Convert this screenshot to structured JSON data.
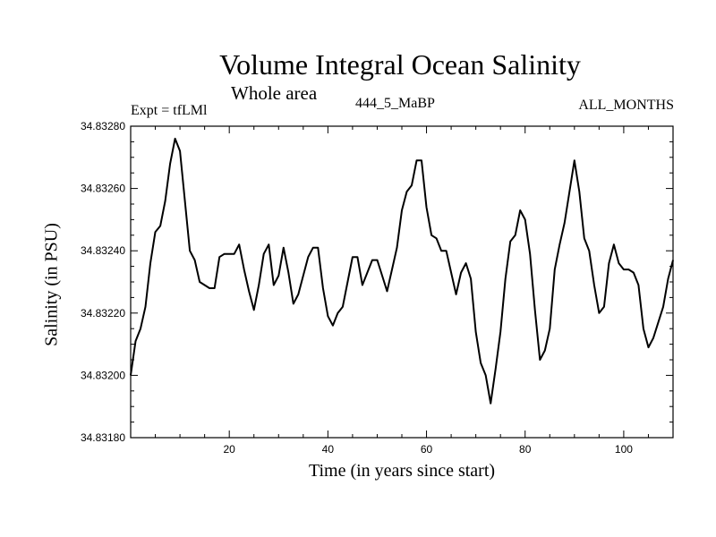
{
  "chart_data": {
    "type": "line",
    "title": "Volume Integral Ocean Salinity",
    "subtitle": "Whole area",
    "left_label": "Expt = tfLMl",
    "center_label": "444_5_MaBP",
    "right_label": "ALL_MONTHS",
    "xlabel": "Time (in years since start)",
    "ylabel": "Salinity (in PSU)",
    "xlim": [
      0,
      110
    ],
    "ylim": [
      34.8318,
      34.8328
    ],
    "x_ticks": [
      20,
      40,
      60,
      80,
      100
    ],
    "y_ticks": [
      "34.83180",
      "34.83200",
      "34.83220",
      "34.83240",
      "34.83260",
      "34.83280"
    ],
    "grid": false,
    "series": [
      {
        "name": "Salinity",
        "x": [
          0,
          1,
          2,
          3,
          4,
          5,
          6,
          7,
          8,
          9,
          10,
          11,
          12,
          13,
          14,
          15,
          16,
          17,
          18,
          19,
          20,
          21,
          22,
          23,
          24,
          25,
          26,
          27,
          28,
          29,
          30,
          31,
          32,
          33,
          34,
          35,
          36,
          37,
          38,
          39,
          40,
          41,
          42,
          43,
          44,
          45,
          46,
          47,
          48,
          49,
          50,
          51,
          52,
          53,
          54,
          55,
          56,
          57,
          58,
          59,
          60,
          61,
          62,
          63,
          64,
          65,
          66,
          67,
          68,
          69,
          70,
          71,
          72,
          73,
          74,
          75,
          76,
          77,
          78,
          79,
          80,
          81,
          82,
          83,
          84,
          85,
          86,
          87,
          88,
          89,
          90,
          91,
          92,
          93,
          94,
          95,
          96,
          97,
          98,
          99,
          100,
          101,
          102,
          103,
          104,
          105,
          106,
          107,
          108,
          109,
          110
        ],
        "values": [
          34.832,
          34.83211,
          34.83215,
          34.83222,
          34.83236,
          34.83246,
          34.83248,
          34.83256,
          34.83268,
          34.83276,
          34.83272,
          34.83256,
          34.8324,
          34.83237,
          34.8323,
          34.83229,
          34.83228,
          34.83228,
          34.83238,
          34.83239,
          34.83239,
          34.83239,
          34.83242,
          34.83234,
          34.83227,
          34.83221,
          34.83229,
          34.83239,
          34.83242,
          34.83229,
          34.83232,
          34.83241,
          34.83233,
          34.83223,
          34.83226,
          34.83232,
          34.83238,
          34.83241,
          34.83241,
          34.83228,
          34.83219,
          34.83216,
          34.8322,
          34.83222,
          34.8323,
          34.83238,
          34.83238,
          34.83229,
          34.83233,
          34.83237,
          34.83237,
          34.83232,
          34.83227,
          34.83234,
          34.83241,
          34.83253,
          34.83259,
          34.83261,
          34.83269,
          34.83269,
          34.83254,
          34.83245,
          34.83244,
          34.8324,
          34.8324,
          34.83233,
          34.83226,
          34.83233,
          34.83236,
          34.83231,
          34.83214,
          34.83204,
          34.832,
          34.83191,
          34.83202,
          34.83214,
          34.83231,
          34.83243,
          34.83245,
          34.83253,
          34.8325,
          34.83239,
          34.83221,
          34.83205,
          34.83208,
          34.83215,
          34.83234,
          34.83242,
          34.83249,
          34.83259,
          34.83269,
          34.83259,
          34.83244,
          34.8324,
          34.83229,
          34.8322,
          34.83222,
          34.83236,
          34.83242,
          34.83236,
          34.83234,
          34.83234,
          34.83233,
          34.83229,
          34.83215,
          34.83209,
          34.83212,
          34.83217,
          34.83222,
          34.83231,
          34.83237
        ]
      }
    ]
  }
}
